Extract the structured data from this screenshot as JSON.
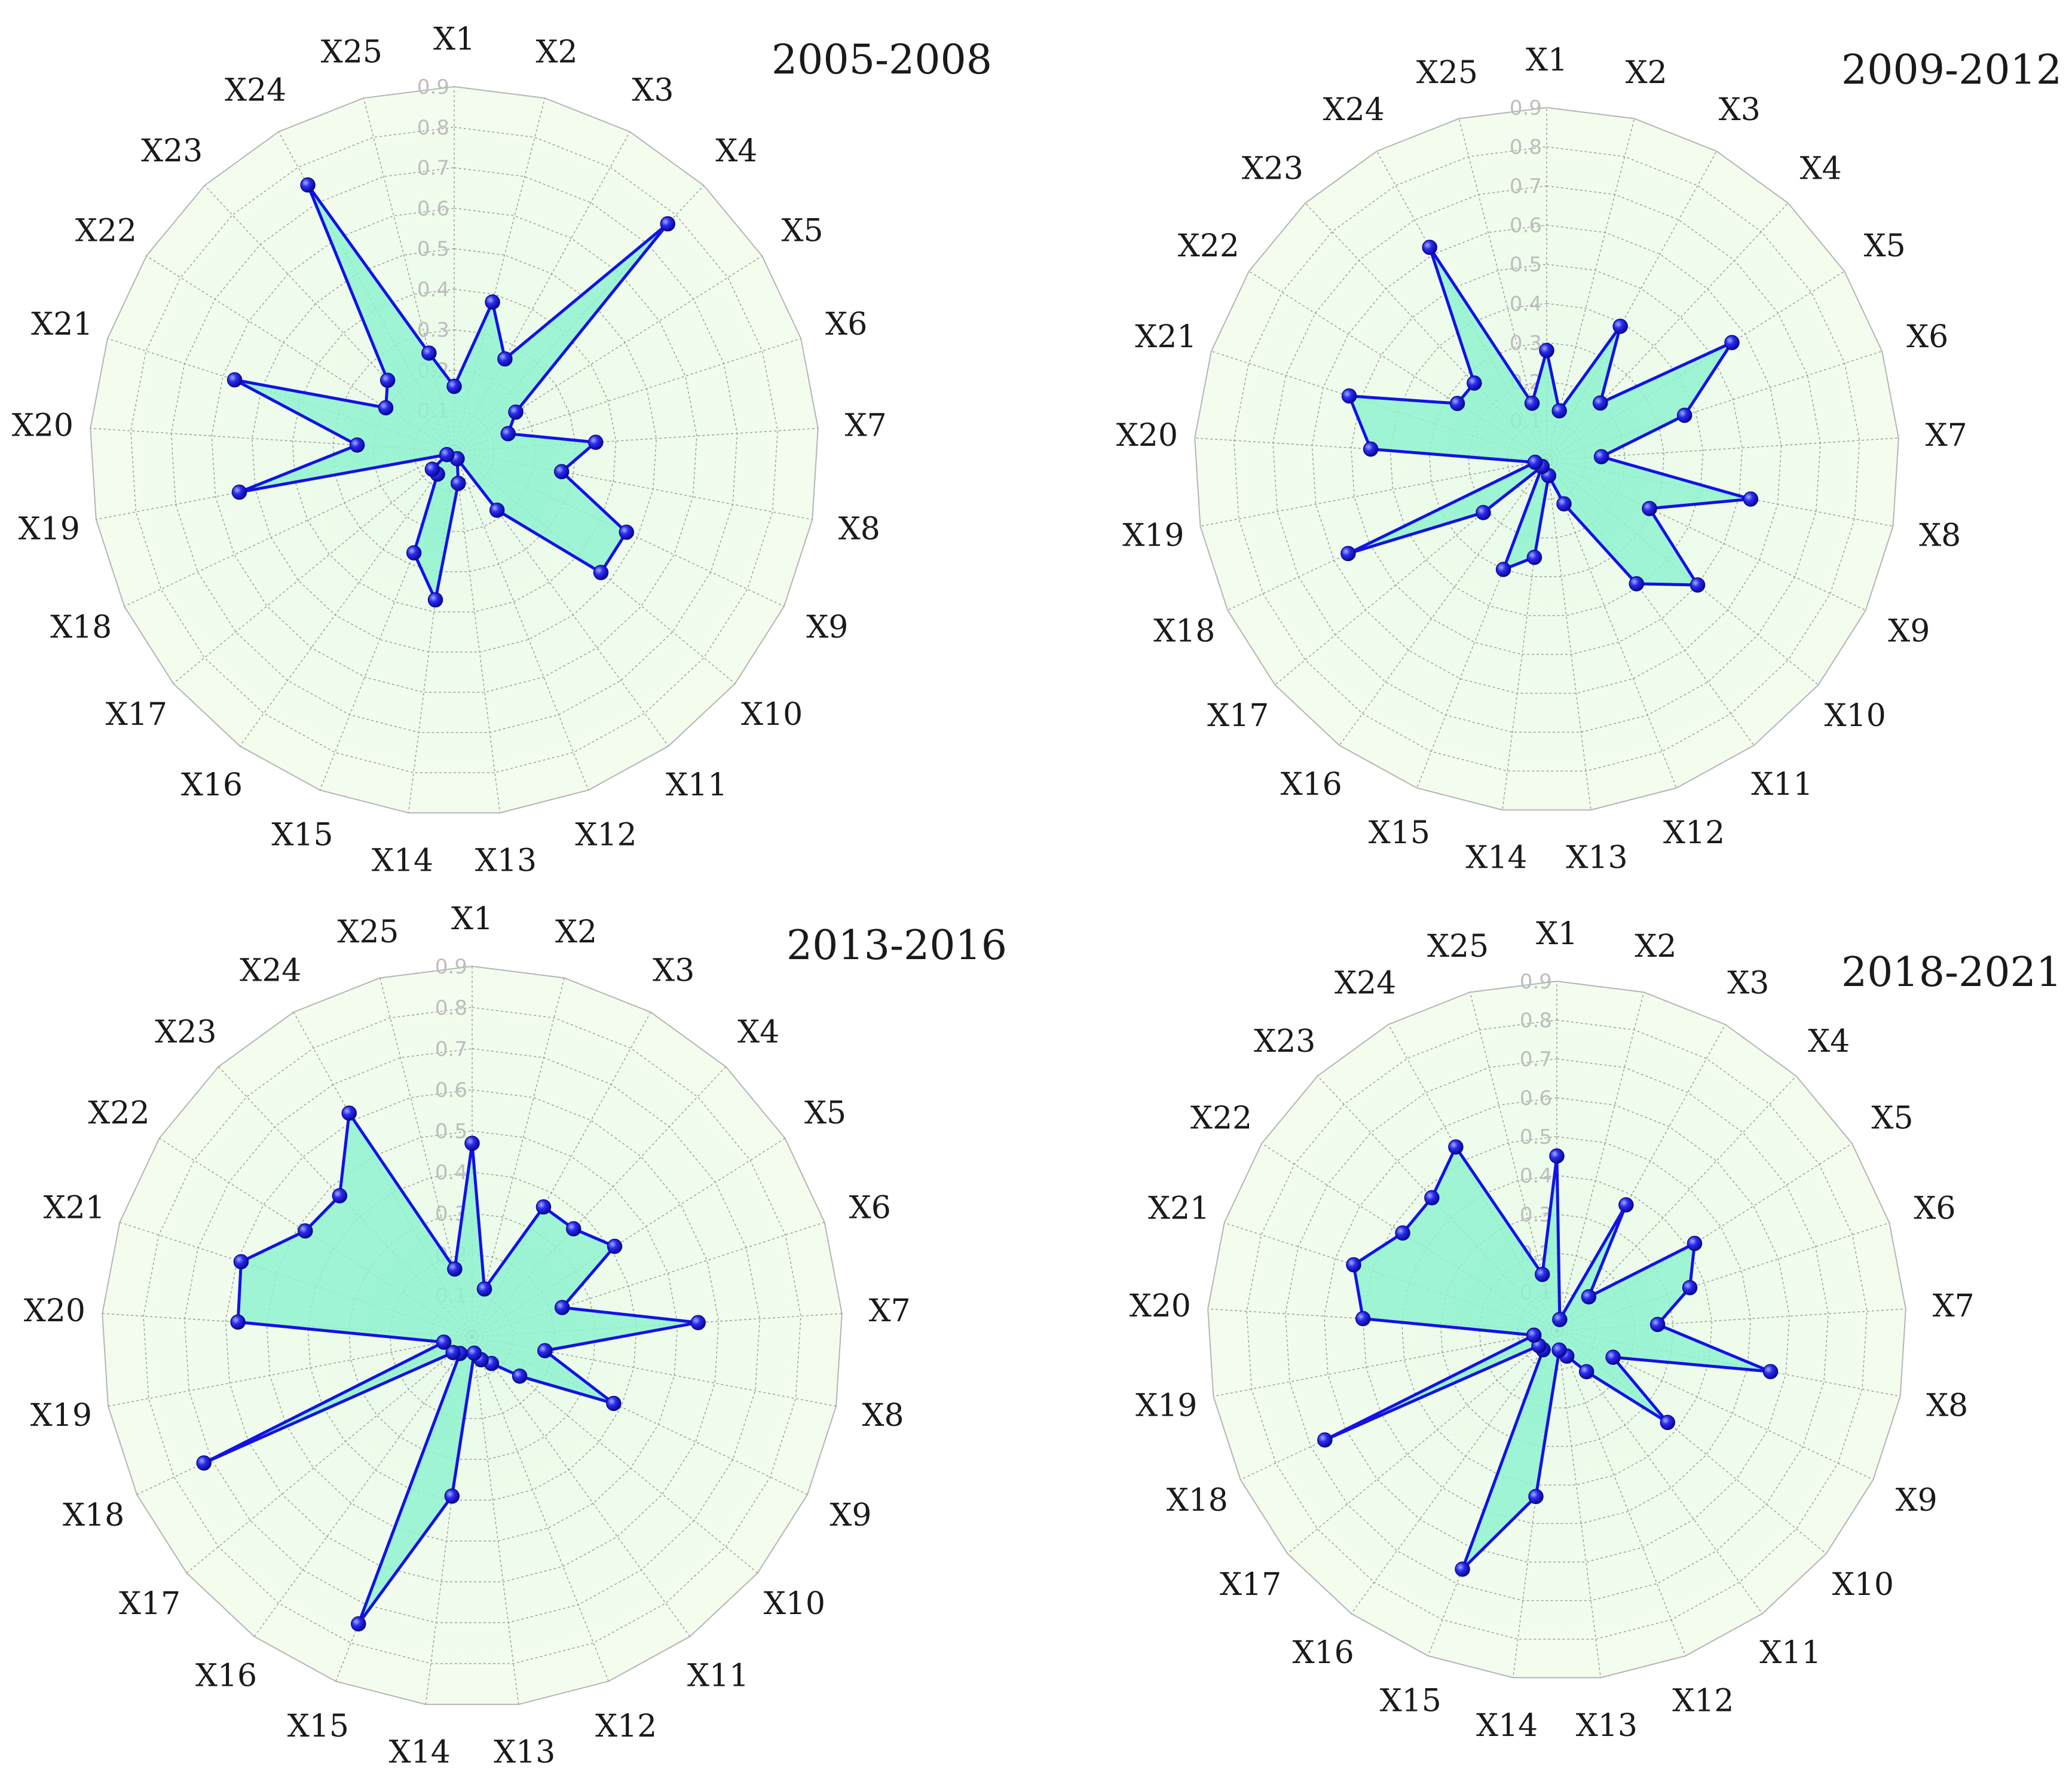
{
  "chart_data": [
    {
      "type": "radar",
      "title": "2005-2008",
      "categories": [
        "X1",
        "X2",
        "X3",
        "X4",
        "X5",
        "X6",
        "X7",
        "X8",
        "X9",
        "X10",
        "X11",
        "X12",
        "X13",
        "X14",
        "X15",
        "X16",
        "X17",
        "X18",
        "X19",
        "X20",
        "X21",
        "X22",
        "X23",
        "X24",
        "X25"
      ],
      "radial_ticks": [
        "0.1",
        "0.2",
        "0.3",
        "0.4",
        "0.5",
        "0.6",
        "0.7",
        "0.8",
        "0.9"
      ],
      "rmax": 0.9,
      "values": [
        0.16,
        0.38,
        0.26,
        0.77,
        0.18,
        0.14,
        0.35,
        0.27,
        0.47,
        0.47,
        0.18,
        0.02,
        0.08,
        0.37,
        0.27,
        0.07,
        0.07,
        0.02,
        0.54,
        0.24,
        0.57,
        0.2,
        0.24,
        0.75,
        0.25
      ]
    },
    {
      "type": "radar",
      "title": "2009-2012",
      "categories": [
        "X1",
        "X2",
        "X3",
        "X4",
        "X5",
        "X6",
        "X7",
        "X8",
        "X9",
        "X10",
        "X11",
        "X12",
        "X13",
        "X14",
        "X15",
        "X16",
        "X17",
        "X18",
        "X19",
        "X20",
        "X21",
        "X22",
        "X23",
        "X24",
        "X25"
      ],
      "radial_ticks": [
        "0.1",
        "0.2",
        "0.3",
        "0.4",
        "0.5",
        "0.6",
        "0.7",
        "0.8",
        "0.9"
      ],
      "rmax": 0.9,
      "values": [
        0.28,
        0.13,
        0.39,
        0.2,
        0.56,
        0.37,
        0.14,
        0.53,
        0.29,
        0.5,
        0.39,
        0.12,
        0.04,
        0.25,
        0.3,
        0.02,
        0.21,
        0.56,
        0.03,
        0.45,
        0.53,
        0.27,
        0.27,
        0.62,
        0.15
      ]
    },
    {
      "type": "radar",
      "title": "2013-2016",
      "categories": [
        "X1",
        "X2",
        "X3",
        "X4",
        "X5",
        "X6",
        "X7",
        "X8",
        "X9",
        "X10",
        "X11",
        "X12",
        "X13",
        "X14",
        "X15",
        "X16",
        "X17",
        "X18",
        "X19",
        "X20",
        "X21",
        "X22",
        "X23",
        "X24",
        "X25"
      ],
      "radial_ticks": [
        "0.1",
        "0.2",
        "0.3",
        "0.4",
        "0.5",
        "0.6",
        "0.7",
        "0.8",
        "0.9"
      ],
      "rmax": 0.9,
      "values": [
        0.47,
        0.12,
        0.36,
        0.36,
        0.41,
        0.23,
        0.55,
        0.18,
        0.38,
        0.15,
        0.08,
        0.06,
        0.04,
        0.39,
        0.75,
        0.05,
        0.06,
        0.72,
        0.07,
        0.57,
        0.59,
        0.48,
        0.47,
        0.62,
        0.17
      ]
    },
    {
      "type": "radar",
      "title": "2018-2021",
      "categories": [
        "X1",
        "X2",
        "X3",
        "X4",
        "X5",
        "X6",
        "X7",
        "X8",
        "X9",
        "X10",
        "X11",
        "X12",
        "X13",
        "X14",
        "X15",
        "X16",
        "X17",
        "X18",
        "X19",
        "X20",
        "X21",
        "X22",
        "X23",
        "X24",
        "X25"
      ],
      "radial_ticks": [
        "0.1",
        "0.2",
        "0.3",
        "0.4",
        "0.5",
        "0.6",
        "0.7",
        "0.8",
        "0.9"
      ],
      "rmax": 0.9,
      "values": [
        0.45,
        0.03,
        0.37,
        0.12,
        0.42,
        0.36,
        0.26,
        0.56,
        0.16,
        0.37,
        0.13,
        0.07,
        0.05,
        0.43,
        0.66,
        0.06,
        0.06,
        0.66,
        0.06,
        0.5,
        0.55,
        0.47,
        0.47,
        0.54,
        0.15
      ]
    }
  ],
  "colors": {
    "line": "#1212e6",
    "fill": "#8ff2cf",
    "marker": "#1d1dd8",
    "background_outer": "#f7fbf0",
    "background_inner": "#eefcef",
    "grid": "#9a9a9a",
    "tick_label": "#bdbdbd"
  }
}
